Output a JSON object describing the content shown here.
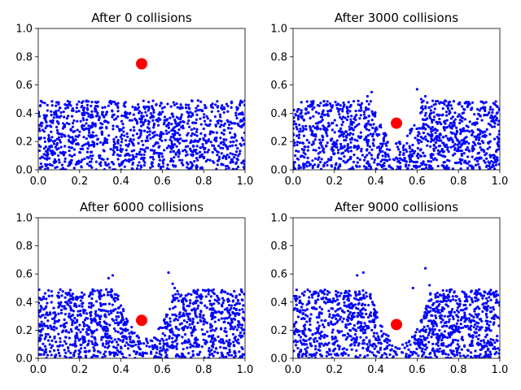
{
  "chart_data": [
    {
      "type": "scatter",
      "title": "After 0 collisions",
      "xlim": [
        0,
        1
      ],
      "ylim": [
        0,
        1
      ],
      "xticks": [
        "0.0",
        "0.2",
        "0.4",
        "0.6",
        "0.8",
        "1.0"
      ],
      "yticks": [
        "0.0",
        "0.2",
        "0.4",
        "0.6",
        "0.8",
        "1.0"
      ],
      "grid": false,
      "big_particle": {
        "x": 0.5,
        "y": 0.75,
        "color": "#ff0000"
      },
      "small_particles": {
        "color": "#0000ff",
        "count": 1200,
        "layer_top": 0.49,
        "crater": null
      }
    },
    {
      "type": "scatter",
      "title": "After 3000 collisions",
      "xlim": [
        0,
        1
      ],
      "ylim": [
        0,
        1
      ],
      "xticks": [
        "0.0",
        "0.2",
        "0.4",
        "0.6",
        "0.8",
        "1.0"
      ],
      "yticks": [
        "0.0",
        "0.2",
        "0.4",
        "0.6",
        "0.8",
        "1.0"
      ],
      "grid": false,
      "big_particle": {
        "x": 0.5,
        "y": 0.33,
        "color": "#ff0000"
      },
      "small_particles": {
        "color": "#0000ff",
        "count": 1200,
        "layer_top": 0.49,
        "crater": {
          "center": 0.5,
          "half_width": 0.12,
          "bottom": 0.2
        },
        "ejecta": [
          [
            0.38,
            0.55
          ],
          [
            0.6,
            0.57
          ],
          [
            0.64,
            0.52
          ],
          [
            0.36,
            0.52
          ],
          [
            0.62,
            0.5
          ]
        ]
      }
    },
    {
      "type": "scatter",
      "title": "After 6000 collisions",
      "xlim": [
        0,
        1
      ],
      "ylim": [
        0,
        1
      ],
      "xticks": [
        "0.0",
        "0.2",
        "0.4",
        "0.6",
        "0.8",
        "1.0"
      ],
      "yticks": [
        "0.0",
        "0.2",
        "0.4",
        "0.6",
        "0.8",
        "1.0"
      ],
      "grid": false,
      "big_particle": {
        "x": 0.5,
        "y": 0.27,
        "color": "#ff0000"
      },
      "small_particles": {
        "color": "#0000ff",
        "count": 1200,
        "layer_top": 0.49,
        "crater": {
          "center": 0.52,
          "half_width": 0.14,
          "bottom": 0.14
        },
        "ejecta": [
          [
            0.36,
            0.59
          ],
          [
            0.63,
            0.61
          ],
          [
            0.34,
            0.57
          ],
          [
            0.65,
            0.53
          ],
          [
            0.66,
            0.5
          ]
        ]
      }
    },
    {
      "type": "scatter",
      "title": "After 9000 collisions",
      "xlim": [
        0,
        1
      ],
      "ylim": [
        0,
        1
      ],
      "xticks": [
        "0.0",
        "0.2",
        "0.4",
        "0.6",
        "0.8",
        "1.0"
      ],
      "yticks": [
        "0.0",
        "0.2",
        "0.4",
        "0.6",
        "0.8",
        "1.0"
      ],
      "grid": false,
      "big_particle": {
        "x": 0.5,
        "y": 0.24,
        "color": "#ff0000"
      },
      "small_particles": {
        "color": "#0000ff",
        "count": 1200,
        "layer_top": 0.49,
        "crater": {
          "center": 0.52,
          "half_width": 0.15,
          "bottom": 0.1
        },
        "ejecta": [
          [
            0.34,
            0.61
          ],
          [
            0.31,
            0.59
          ],
          [
            0.64,
            0.64
          ],
          [
            0.58,
            0.5
          ],
          [
            0.66,
            0.52
          ]
        ]
      }
    }
  ]
}
